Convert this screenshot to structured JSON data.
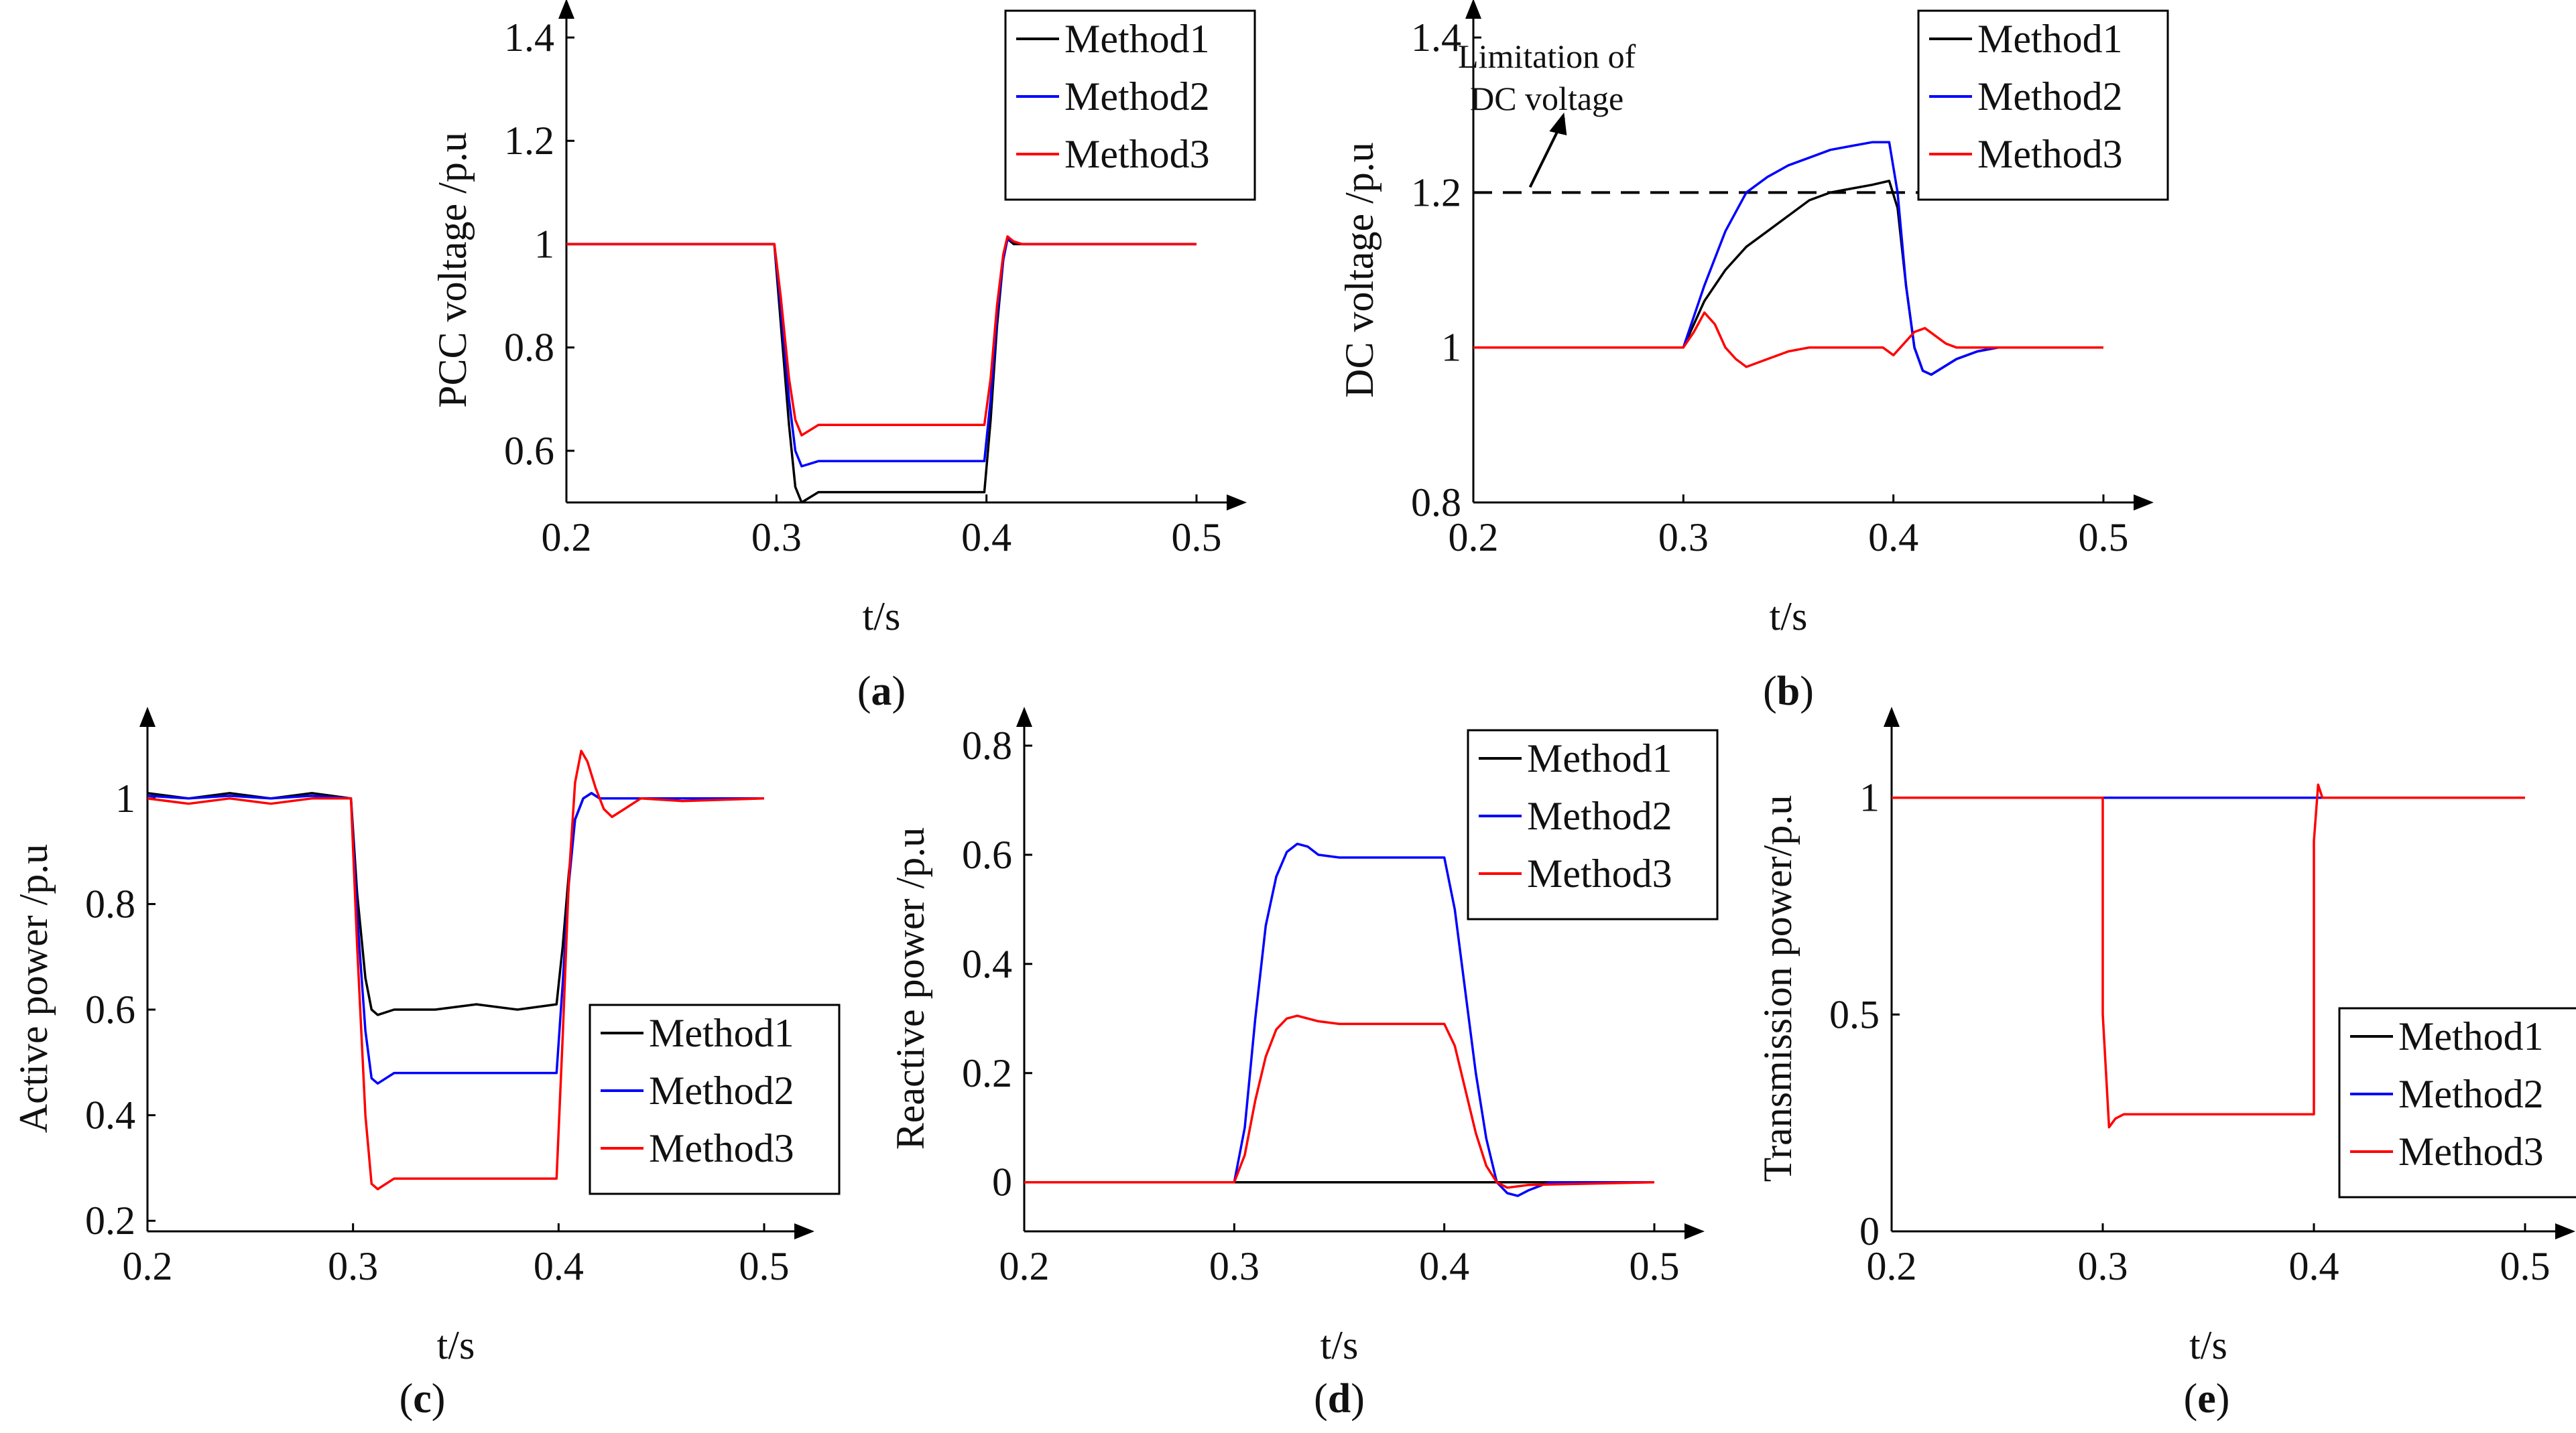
{
  "figure": {
    "colors": {
      "Method1": "#000000",
      "Method2": "#0000ff",
      "Method3": "#ff0000",
      "axis": "#000000"
    }
  },
  "chart_data": [
    {
      "id": "a",
      "caption": "a",
      "type": "line",
      "title": "",
      "xlabel": "t/s",
      "ylabel": "PCC voltage /p.u",
      "xlim": [
        0.2,
        0.5
      ],
      "ylim": [
        0.5,
        1.4
      ],
      "xticks": [
        0.2,
        0.3,
        0.4,
        0.5
      ],
      "xtick_labels": [
        "0.2",
        "0.3",
        "0.4",
        "0.5"
      ],
      "yticks": [
        0.6,
        0.8,
        1.0,
        1.2,
        1.4
      ],
      "ytick_labels": [
        "0.6",
        "0.8",
        "1",
        "1.2",
        "1.4"
      ],
      "legend": "top-right",
      "series": [
        {
          "name": "Method1",
          "x": [
            0.2,
            0.299,
            0.302,
            0.306,
            0.309,
            0.312,
            0.316,
            0.32,
            0.33,
            0.399,
            0.402,
            0.405,
            0.408,
            0.41,
            0.413,
            0.417,
            0.42,
            0.5
          ],
          "y": [
            1.0,
            1.0,
            0.85,
            0.65,
            0.53,
            0.5,
            0.51,
            0.52,
            0.52,
            0.52,
            0.66,
            0.84,
            0.97,
            1.01,
            1.0,
            1.0,
            1.0,
            1.0
          ]
        },
        {
          "name": "Method2",
          "x": [
            0.2,
            0.299,
            0.302,
            0.306,
            0.309,
            0.312,
            0.316,
            0.32,
            0.33,
            0.399,
            0.402,
            0.405,
            0.408,
            0.41,
            0.413,
            0.417,
            0.42,
            0.5
          ],
          "y": [
            1.0,
            1.0,
            0.88,
            0.7,
            0.6,
            0.57,
            0.575,
            0.58,
            0.58,
            0.58,
            0.7,
            0.86,
            0.97,
            1.01,
            1.005,
            1.0,
            1.0,
            1.0
          ]
        },
        {
          "name": "Method3",
          "x": [
            0.2,
            0.299,
            0.302,
            0.306,
            0.309,
            0.312,
            0.316,
            0.32,
            0.33,
            0.399,
            0.402,
            0.405,
            0.408,
            0.41,
            0.413,
            0.417,
            0.42,
            0.5
          ],
          "y": [
            1.0,
            1.0,
            0.9,
            0.74,
            0.66,
            0.63,
            0.64,
            0.65,
            0.65,
            0.65,
            0.74,
            0.88,
            0.98,
            1.015,
            1.005,
            1.0,
            1.0,
            1.0
          ]
        }
      ]
    },
    {
      "id": "b",
      "caption": "b",
      "type": "line",
      "title": "",
      "xlabel": "t/s",
      "ylabel": "DC voltage /p.u",
      "xlim": [
        0.2,
        0.5
      ],
      "ylim": [
        0.8,
        1.4
      ],
      "xticks": [
        0.2,
        0.3,
        0.4,
        0.5
      ],
      "xtick_labels": [
        "0.2",
        "0.3",
        "0.4",
        "0.5"
      ],
      "yticks": [
        0.8,
        1.0,
        1.2,
        1.4
      ],
      "ytick_labels": [
        "0.8",
        "1",
        "1.2",
        "1.4"
      ],
      "legend": "top-right",
      "reference_line": {
        "y": 1.2,
        "label_line1": "Limitation of",
        "label_line2": "DC voltage"
      },
      "series": [
        {
          "name": "Method1",
          "x": [
            0.2,
            0.3,
            0.31,
            0.32,
            0.33,
            0.34,
            0.35,
            0.36,
            0.37,
            0.38,
            0.39,
            0.398,
            0.402,
            0.406,
            0.41,
            0.414,
            0.418,
            0.424,
            0.43,
            0.44,
            0.45,
            0.5
          ],
          "y": [
            1.0,
            1.0,
            1.06,
            1.1,
            1.13,
            1.15,
            1.17,
            1.19,
            1.2,
            1.205,
            1.21,
            1.215,
            1.18,
            1.08,
            1.0,
            0.97,
            0.965,
            0.975,
            0.985,
            0.995,
            1.0,
            1.0
          ]
        },
        {
          "name": "Method2",
          "x": [
            0.2,
            0.3,
            0.31,
            0.32,
            0.33,
            0.34,
            0.35,
            0.36,
            0.37,
            0.38,
            0.39,
            0.398,
            0.402,
            0.406,
            0.41,
            0.414,
            0.418,
            0.424,
            0.43,
            0.44,
            0.45,
            0.5
          ],
          "y": [
            1.0,
            1.0,
            1.08,
            1.15,
            1.2,
            1.22,
            1.235,
            1.245,
            1.255,
            1.26,
            1.265,
            1.265,
            1.2,
            1.08,
            1.0,
            0.97,
            0.965,
            0.975,
            0.985,
            0.995,
            1.0,
            1.0
          ]
        },
        {
          "name": "Method3",
          "x": [
            0.2,
            0.3,
            0.305,
            0.31,
            0.315,
            0.32,
            0.325,
            0.33,
            0.34,
            0.35,
            0.36,
            0.37,
            0.38,
            0.39,
            0.395,
            0.4,
            0.405,
            0.41,
            0.415,
            0.42,
            0.425,
            0.43,
            0.44,
            0.5
          ],
          "y": [
            1.0,
            1.0,
            1.02,
            1.045,
            1.03,
            1.0,
            0.985,
            0.975,
            0.985,
            0.995,
            1.0,
            1.0,
            1.0,
            1.0,
            1.0,
            0.99,
            1.005,
            1.02,
            1.025,
            1.015,
            1.005,
            1.0,
            1.0,
            1.0
          ]
        }
      ]
    },
    {
      "id": "c",
      "caption": "c",
      "type": "line",
      "title": "",
      "xlabel": "t/s",
      "ylabel": "Active power /p.u",
      "xlim": [
        0.2,
        0.5
      ],
      "ylim": [
        0.18,
        1.1
      ],
      "xticks": [
        0.2,
        0.3,
        0.4,
        0.5
      ],
      "xtick_labels": [
        "0.2",
        "0.3",
        "0.4",
        "0.5"
      ],
      "yticks": [
        0.2,
        0.4,
        0.6,
        0.8,
        1.0
      ],
      "ytick_labels": [
        "0.2",
        "0.4",
        "0.6",
        "0.8",
        "1"
      ],
      "legend": "bottom-right",
      "series": [
        {
          "name": "Method1",
          "x": [
            0.2,
            0.22,
            0.24,
            0.26,
            0.28,
            0.299,
            0.302,
            0.306,
            0.309,
            0.312,
            0.32,
            0.34,
            0.36,
            0.38,
            0.399,
            0.402,
            0.405,
            0.408,
            0.412,
            0.416,
            0.42,
            0.44,
            0.46,
            0.48,
            0.5
          ],
          "y": [
            1.01,
            1.0,
            1.01,
            1.0,
            1.01,
            1.0,
            0.82,
            0.66,
            0.6,
            0.59,
            0.6,
            0.6,
            0.61,
            0.6,
            0.61,
            0.72,
            0.86,
            0.96,
            1.0,
            1.01,
            1.0,
            1.0,
            1.0,
            1.0,
            1.0
          ]
        },
        {
          "name": "Method2",
          "x": [
            0.2,
            0.22,
            0.24,
            0.26,
            0.28,
            0.299,
            0.302,
            0.306,
            0.309,
            0.312,
            0.32,
            0.34,
            0.36,
            0.38,
            0.399,
            0.402,
            0.405,
            0.408,
            0.412,
            0.416,
            0.42,
            0.44,
            0.46,
            0.48,
            0.5
          ],
          "y": [
            1.005,
            1.0,
            1.005,
            1.0,
            1.005,
            1.0,
            0.78,
            0.56,
            0.47,
            0.46,
            0.48,
            0.48,
            0.48,
            0.48,
            0.48,
            0.65,
            0.84,
            0.96,
            1.0,
            1.01,
            1.0,
            1.0,
            1.0,
            1.0,
            1.0
          ]
        },
        {
          "name": "Method3",
          "x": [
            0.2,
            0.22,
            0.24,
            0.26,
            0.28,
            0.299,
            0.302,
            0.306,
            0.309,
            0.312,
            0.32,
            0.34,
            0.36,
            0.38,
            0.399,
            0.402,
            0.405,
            0.408,
            0.411,
            0.414,
            0.418,
            0.422,
            0.426,
            0.432,
            0.44,
            0.46,
            0.5
          ],
          "y": [
            1.0,
            0.99,
            1.0,
            0.99,
            1.0,
            1.0,
            0.72,
            0.4,
            0.27,
            0.26,
            0.28,
            0.28,
            0.28,
            0.28,
            0.28,
            0.55,
            0.85,
            1.03,
            1.09,
            1.07,
            1.02,
            0.98,
            0.965,
            0.98,
            1.0,
            0.995,
            1.0
          ]
        }
      ]
    },
    {
      "id": "d",
      "caption": "d",
      "type": "line",
      "title": "",
      "xlabel": "t/s",
      "ylabel": "Reactive power /p.u",
      "xlim": [
        0.2,
        0.5
      ],
      "ylim": [
        -0.09,
        0.8
      ],
      "xticks": [
        0.2,
        0.3,
        0.4,
        0.5
      ],
      "xtick_labels": [
        "0.2",
        "0.3",
        "0.4",
        "0.5"
      ],
      "yticks": [
        0.0,
        0.2,
        0.4,
        0.6,
        0.8
      ],
      "ytick_labels": [
        "0",
        "0.2",
        "0.4",
        "0.6",
        "0.8"
      ],
      "legend": "top-right",
      "series": [
        {
          "name": "Method1",
          "x": [
            0.2,
            0.3,
            0.35,
            0.4,
            0.45,
            0.5
          ],
          "y": [
            0.0,
            0.0,
            0.0,
            0.0,
            0.0,
            0.0
          ]
        },
        {
          "name": "Method2",
          "x": [
            0.2,
            0.3,
            0.305,
            0.31,
            0.315,
            0.32,
            0.325,
            0.33,
            0.335,
            0.34,
            0.35,
            0.37,
            0.4,
            0.405,
            0.41,
            0.415,
            0.42,
            0.425,
            0.43,
            0.435,
            0.44,
            0.45,
            0.5
          ],
          "y": [
            0.0,
            0.0,
            0.1,
            0.3,
            0.47,
            0.56,
            0.605,
            0.62,
            0.615,
            0.6,
            0.595,
            0.595,
            0.595,
            0.5,
            0.35,
            0.2,
            0.08,
            0.0,
            -0.02,
            -0.025,
            -0.015,
            0.0,
            0.0
          ]
        },
        {
          "name": "Method3",
          "x": [
            0.2,
            0.3,
            0.305,
            0.31,
            0.315,
            0.32,
            0.325,
            0.33,
            0.335,
            0.34,
            0.35,
            0.37,
            0.4,
            0.405,
            0.41,
            0.415,
            0.42,
            0.425,
            0.43,
            0.44,
            0.5
          ],
          "y": [
            0.0,
            0.0,
            0.05,
            0.15,
            0.23,
            0.28,
            0.3,
            0.305,
            0.3,
            0.295,
            0.29,
            0.29,
            0.29,
            0.25,
            0.17,
            0.09,
            0.03,
            0.0,
            -0.01,
            -0.005,
            0.0
          ]
        }
      ]
    },
    {
      "id": "e",
      "caption": "e",
      "type": "line",
      "title": "",
      "xlabel": "t/s",
      "ylabel": "Transmission power/p.u",
      "xlim": [
        0.2,
        0.5
      ],
      "ylim": [
        0,
        1.12
      ],
      "xticks": [
        0.2,
        0.3,
        0.4,
        0.5
      ],
      "xtick_labels": [
        "0.2",
        "0.3",
        "0.4",
        "0.5"
      ],
      "yticks": [
        0,
        0.5,
        1.0
      ],
      "ytick_labels": [
        "0",
        "0.5",
        "1"
      ],
      "legend": "bottom-right",
      "series": [
        {
          "name": "Method1",
          "x": [
            0.2,
            0.5
          ],
          "y": [
            1.0,
            1.0
          ]
        },
        {
          "name": "Method2",
          "x": [
            0.2,
            0.5
          ],
          "y": [
            1.0,
            1.0
          ]
        },
        {
          "name": "Method3",
          "x": [
            0.2,
            0.3,
            0.3,
            0.303,
            0.306,
            0.31,
            0.4,
            0.4,
            0.402,
            0.404,
            0.5
          ],
          "y": [
            1.0,
            1.0,
            0.5,
            0.24,
            0.26,
            0.27,
            0.27,
            0.9,
            1.03,
            1.0,
            1.0
          ]
        }
      ]
    }
  ]
}
